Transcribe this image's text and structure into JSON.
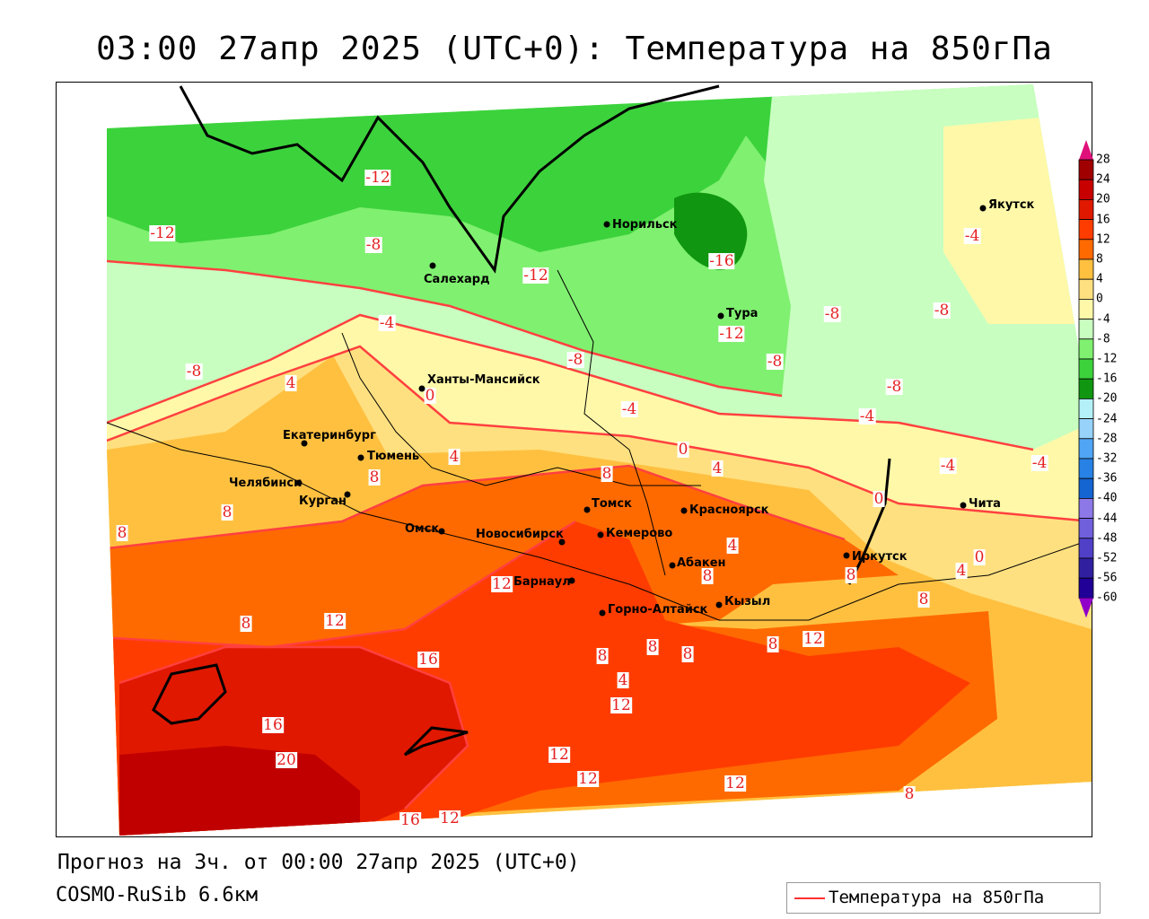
{
  "title": "03:00 27апр 2025 (UTC+0): Температура на 850гПа",
  "footer": {
    "forecast": "Прогноз на 3ч. от 00:00 27апр 2025 (UTC+0)",
    "model": "COSMO-RuSib 6.6км"
  },
  "legend": {
    "label": "Температура на 850гПа",
    "line_color": "#ff3030"
  },
  "colorbar": {
    "ticks": [
      "28",
      "24",
      "20",
      "16",
      "12",
      "8",
      "4",
      "0",
      "-4",
      "-8",
      "-12",
      "-16",
      "-20",
      "-24",
      "-28",
      "-32",
      "-36",
      "-40",
      "-44",
      "-48",
      "-52",
      "-56",
      "-60"
    ],
    "colors": [
      "#a00000",
      "#c80000",
      "#e01800",
      "#ff3c00",
      "#ff6a00",
      "#ffc040",
      "#ffe080",
      "#fff8a8",
      "#c8ffc0",
      "#80f070",
      "#3cd23c",
      "#109610",
      "#b4f0f8",
      "#96d2fa",
      "#50a5f5",
      "#2882e6",
      "#1464d2",
      "#8c78e6",
      "#7060dc",
      "#5040c8",
      "#3020a0",
      "#200096"
    ],
    "over_color": "#e0107a",
    "under_color": "#9000c8"
  },
  "cities": [
    "Якутск",
    "Норильск",
    "Салехард",
    "Тура",
    "Ханты-Мансийск",
    "Екатеринбург",
    "Тюмень",
    "Челябинск",
    "Курган",
    "Омск",
    "Новосибирск",
    "Томск",
    "Красноярск",
    "Кемерово",
    "Абакен",
    "Барнаул",
    "Кызыл",
    "Горно-Алтайск",
    "Иркутск",
    "Чита"
  ],
  "contour_labels": [
    "-12",
    "-12",
    "-8",
    "-12",
    "-16",
    "-12",
    "-8",
    "-8",
    "-4",
    "-4",
    "-8",
    "-8",
    "-8",
    "-8",
    "-4",
    "-4",
    "-4",
    "-4",
    "4",
    "0",
    "4",
    "0",
    "4",
    "8",
    "8",
    "8",
    "8",
    "0",
    "4",
    "8",
    "12",
    "8",
    "4",
    "0",
    "8",
    "8",
    "12",
    "16",
    "8",
    "8",
    "8",
    "8",
    "12",
    "4",
    "12",
    "16",
    "20",
    "12",
    "12",
    "12",
    "8",
    "16",
    "12"
  ]
}
